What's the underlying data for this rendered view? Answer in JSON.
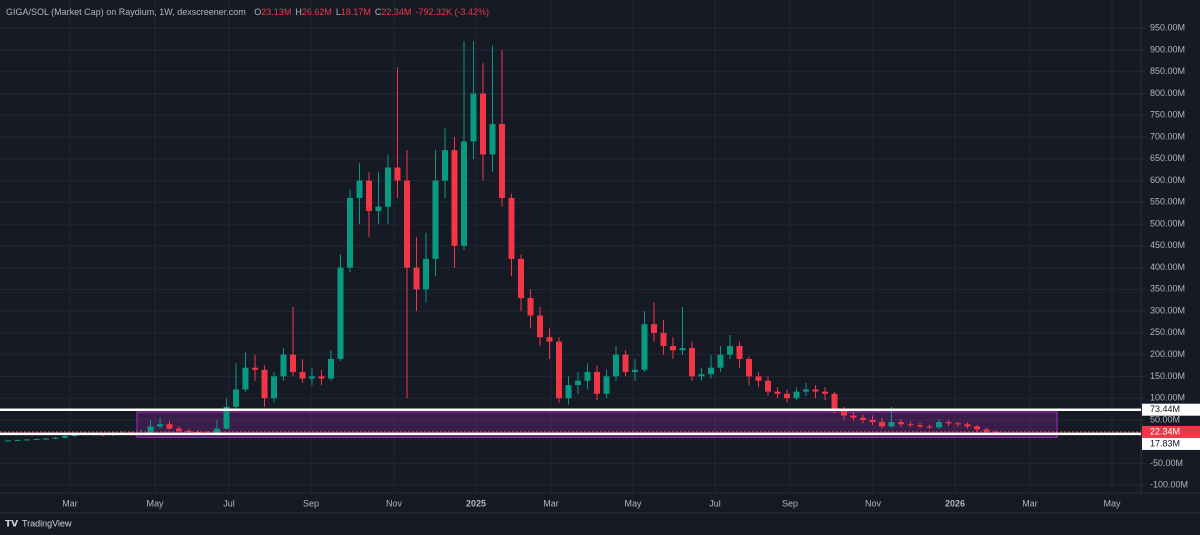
{
  "chart_data": {
    "type": "candlestick",
    "title": "GIGA/SOL (Market Cap) on Raydium, 1W, dexscreener.com",
    "ohlc_labels": [
      "O",
      "H",
      "L",
      "C"
    ],
    "ohlc_values": [
      "23.13M",
      "26.62M",
      "18.17M",
      "22.34M"
    ],
    "change": "-792.32K (-3.42%)",
    "brand": "TradingView",
    "up_color": "#089981",
    "down_color": "#f23645",
    "x_labels": [
      "Mar",
      "May",
      "Jul",
      "Sep",
      "Nov",
      "2025",
      "Mar",
      "May",
      "Jul",
      "Sep",
      "Nov",
      "2026",
      "Mar",
      "May"
    ],
    "open": [
      2,
      3,
      4,
      5,
      6,
      7,
      9,
      13,
      16,
      18,
      17,
      15,
      18,
      20,
      17,
      20,
      35,
      40,
      30,
      25,
      22,
      20,
      18,
      30,
      80,
      120,
      170,
      165,
      100,
      150,
      200,
      160,
      145,
      150,
      145,
      190,
      400,
      560,
      600,
      530,
      540,
      630,
      600,
      400,
      350,
      420,
      600,
      670,
      450,
      690,
      800,
      660,
      730,
      560,
      420,
      330,
      290,
      240,
      230,
      100,
      130,
      140,
      160,
      110,
      150,
      200,
      160,
      165,
      270,
      250,
      220,
      210,
      215,
      150,
      155,
      170,
      200,
      220,
      190,
      150,
      140,
      115,
      110,
      100,
      115,
      120,
      115,
      110,
      75,
      60,
      55,
      50,
      45,
      35,
      45,
      40,
      38,
      35,
      33,
      45,
      42,
      40,
      35,
      28,
      23.13
    ],
    "high": [
      4,
      5,
      6,
      7,
      9,
      11,
      15,
      20,
      22,
      21,
      19,
      22,
      25,
      23,
      28,
      50,
      55,
      48,
      35,
      30,
      27,
      24,
      50,
      100,
      180,
      205,
      200,
      175,
      160,
      215,
      310,
      190,
      170,
      165,
      210,
      430,
      580,
      640,
      620,
      620,
      660,
      860,
      670,
      470,
      480,
      670,
      720,
      700,
      920,
      920,
      870,
      910,
      900,
      570,
      430,
      350,
      310,
      260,
      240,
      150,
      160,
      180,
      175,
      165,
      220,
      210,
      190,
      300,
      320,
      280,
      240,
      310,
      230,
      170,
      200,
      220,
      245,
      230,
      195,
      160,
      150,
      125,
      120,
      125,
      135,
      130,
      125,
      115,
      80,
      68,
      62,
      60,
      55,
      80,
      52,
      46,
      44,
      40,
      52,
      50,
      46,
      44,
      38,
      32,
      26.62
    ],
    "low": [
      1,
      2,
      3,
      4,
      5,
      6,
      8,
      11,
      14,
      14,
      12,
      13,
      16,
      14,
      15,
      18,
      30,
      27,
      22,
      19,
      17,
      15,
      16,
      28,
      75,
      115,
      140,
      80,
      90,
      140,
      150,
      135,
      130,
      130,
      140,
      185,
      390,
      500,
      470,
      500,
      500,
      560,
      100,
      300,
      320,
      380,
      560,
      400,
      440,
      650,
      600,
      620,
      540,
      380,
      300,
      260,
      220,
      190,
      90,
      85,
      110,
      120,
      95,
      100,
      140,
      150,
      140,
      160,
      230,
      200,
      190,
      200,
      140,
      140,
      145,
      160,
      190,
      170,
      130,
      125,
      105,
      100,
      90,
      95,
      105,
      100,
      95,
      65,
      50,
      48,
      42,
      38,
      30,
      32,
      35,
      33,
      30,
      28,
      30,
      36,
      34,
      30,
      24,
      20,
      18.17
    ],
    "close": [
      3,
      4,
      5,
      6,
      7,
      9,
      13,
      16,
      18,
      17,
      15,
      18,
      20,
      17,
      20,
      35,
      40,
      30,
      25,
      22,
      20,
      18,
      30,
      80,
      120,
      170,
      165,
      100,
      150,
      200,
      160,
      145,
      150,
      145,
      190,
      400,
      560,
      600,
      530,
      540,
      630,
      600,
      400,
      350,
      420,
      600,
      670,
      450,
      690,
      800,
      660,
      730,
      560,
      420,
      330,
      290,
      240,
      230,
      100,
      130,
      140,
      160,
      110,
      150,
      200,
      160,
      165,
      270,
      250,
      220,
      210,
      215,
      150,
      155,
      170,
      200,
      220,
      190,
      150,
      140,
      115,
      110,
      100,
      115,
      120,
      115,
      110,
      75,
      60,
      55,
      50,
      45,
      35,
      45,
      40,
      38,
      35,
      33,
      45,
      42,
      40,
      35,
      28,
      23.13,
      22.34
    ],
    "ylim": [
      -118,
      1015
    ],
    "yticks": [
      {
        "value": 950,
        "label": "950.00M"
      },
      {
        "value": 900,
        "label": "900.00M"
      },
      {
        "value": 850,
        "label": "850.00M"
      },
      {
        "value": 800,
        "label": "800.00M"
      },
      {
        "value": 750,
        "label": "750.00M"
      },
      {
        "value": 700,
        "label": "700.00M"
      },
      {
        "value": 650,
        "label": "650.00M"
      },
      {
        "value": 600,
        "label": "600.00M"
      },
      {
        "value": 550,
        "label": "550.00M"
      },
      {
        "value": 500,
        "label": "500.00M"
      },
      {
        "value": 450,
        "label": "450.00M"
      },
      {
        "value": 400,
        "label": "400.00M"
      },
      {
        "value": 350,
        "label": "350.00M"
      },
      {
        "value": 300,
        "label": "300.00M"
      },
      {
        "value": 250,
        "label": "250.00M"
      },
      {
        "value": 200,
        "label": "200.00M"
      },
      {
        "value": 150,
        "label": "150.00M"
      },
      {
        "value": 100,
        "label": "100.00M"
      },
      {
        "value": 50,
        "label": "50.00M"
      },
      {
        "value": -50,
        "label": "-50.00M"
      },
      {
        "value": -100,
        "label": "-100.00M"
      }
    ],
    "levels": [
      {
        "value": 73.44,
        "label": "73.44M",
        "color": "#ffffff"
      },
      {
        "value": 17.83,
        "label": "17.83M",
        "color": "#ffffff"
      }
    ],
    "last_price": {
      "value": 22.34,
      "label": "22.34M",
      "color": "#f23645"
    },
    "zone": {
      "top": 68,
      "bottom": 10,
      "color": "#9c27b0"
    }
  }
}
